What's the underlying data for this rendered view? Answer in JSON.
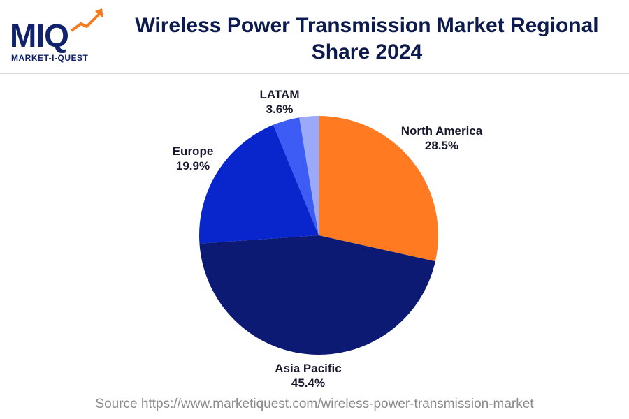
{
  "logo": {
    "letters": "MIQ",
    "tagline": "MARKET-I-QUEST"
  },
  "header": {
    "title": "Wireless Power Transmission Market Regional Share 2024"
  },
  "chart_data": {
    "type": "pie",
    "title": "Wireless Power Transmission Market Regional Share 2024",
    "slices": [
      {
        "label": "North America",
        "value": 28.5,
        "display": "28.5%",
        "color": "#ff7a21"
      },
      {
        "label": "Asia Pacific",
        "value": 45.4,
        "display": "45.4%",
        "color": "#0d1a73"
      },
      {
        "label": "Europe",
        "value": 19.9,
        "display": "19.9%",
        "color": "#0826cc"
      },
      {
        "label": "LATAM",
        "value": 3.6,
        "display": "3.6%",
        "color": "#3d5cf5"
      },
      {
        "label": "",
        "value": 2.6,
        "display": "",
        "color": "#9aaaf8"
      }
    ]
  },
  "footer": {
    "source": "Source https://www.marketiquest.com/wireless-power-transmission-market"
  }
}
